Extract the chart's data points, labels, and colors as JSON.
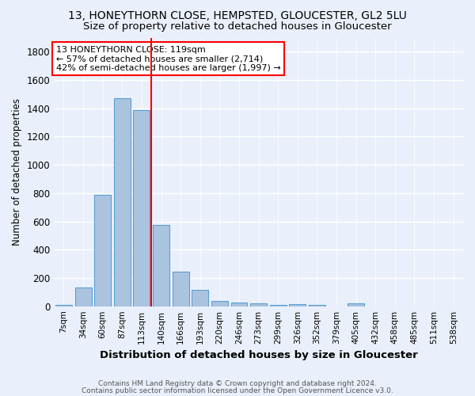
{
  "title": "13, HONEYTHORN CLOSE, HEMPSTED, GLOUCESTER, GL2 5LU",
  "subtitle": "Size of property relative to detached houses in Gloucester",
  "xlabel": "Distribution of detached houses by size in Gloucester",
  "ylabel": "Number of detached properties",
  "categories": [
    "7sqm",
    "34sqm",
    "60sqm",
    "87sqm",
    "113sqm",
    "140sqm",
    "166sqm",
    "193sqm",
    "220sqm",
    "246sqm",
    "273sqm",
    "299sqm",
    "326sqm",
    "352sqm",
    "379sqm",
    "405sqm",
    "432sqm",
    "458sqm",
    "485sqm",
    "511sqm",
    "538sqm"
  ],
  "values": [
    10,
    135,
    790,
    1470,
    1390,
    575,
    245,
    115,
    40,
    25,
    20,
    10,
    15,
    10,
    0,
    20,
    0,
    0,
    0,
    0,
    0
  ],
  "bar_color": "#aac4e0",
  "bar_edge_color": "#5a9fd4",
  "red_line_x": 4.5,
  "annotation_text": "13 HONEYTHORN CLOSE: 119sqm\n← 57% of detached houses are smaller (2,714)\n42% of semi-detached houses are larger (1,997) →",
  "annotation_box_color": "white",
  "annotation_box_edge": "red",
  "footer1": "Contains HM Land Registry data © Crown copyright and database right 2024.",
  "footer2": "Contains public sector information licensed under the Open Government Licence v3.0.",
  "ylim": [
    0,
    1900
  ],
  "bg_color": "#eaf0fb",
  "grid_color": "white",
  "title_fontsize": 10,
  "subtitle_fontsize": 9.5
}
